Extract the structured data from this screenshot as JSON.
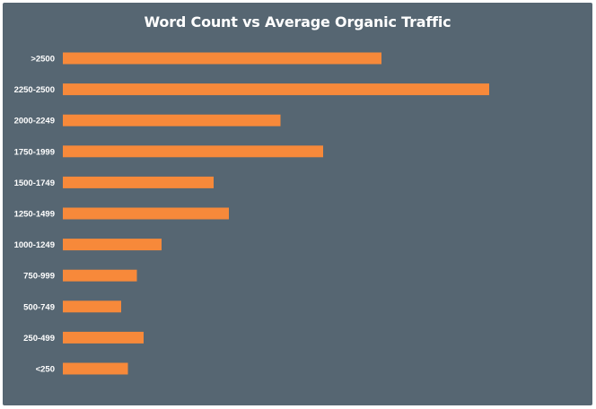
{
  "chart_data": {
    "type": "bar",
    "orientation": "horizontal",
    "title": "Word Count vs Average Organic Traffic",
    "xlabel": "",
    "ylabel": "",
    "categories": [
      ">2500",
      "2250-2500",
      "2000-2249",
      "1750-1999",
      "1500-1749",
      "1250-1499",
      "1000-1249",
      "750-999",
      "500-749",
      "250-499",
      "<250"
    ],
    "values": [
      71,
      95,
      48.5,
      58,
      33.6,
      37,
      22,
      16.5,
      13,
      18,
      14.5
    ],
    "xlim": [
      0,
      100
    ],
    "grid": false,
    "legend": "none",
    "colors": {
      "background": "#566672",
      "bar": "#F7893A",
      "text": "#FFFFFF"
    }
  }
}
